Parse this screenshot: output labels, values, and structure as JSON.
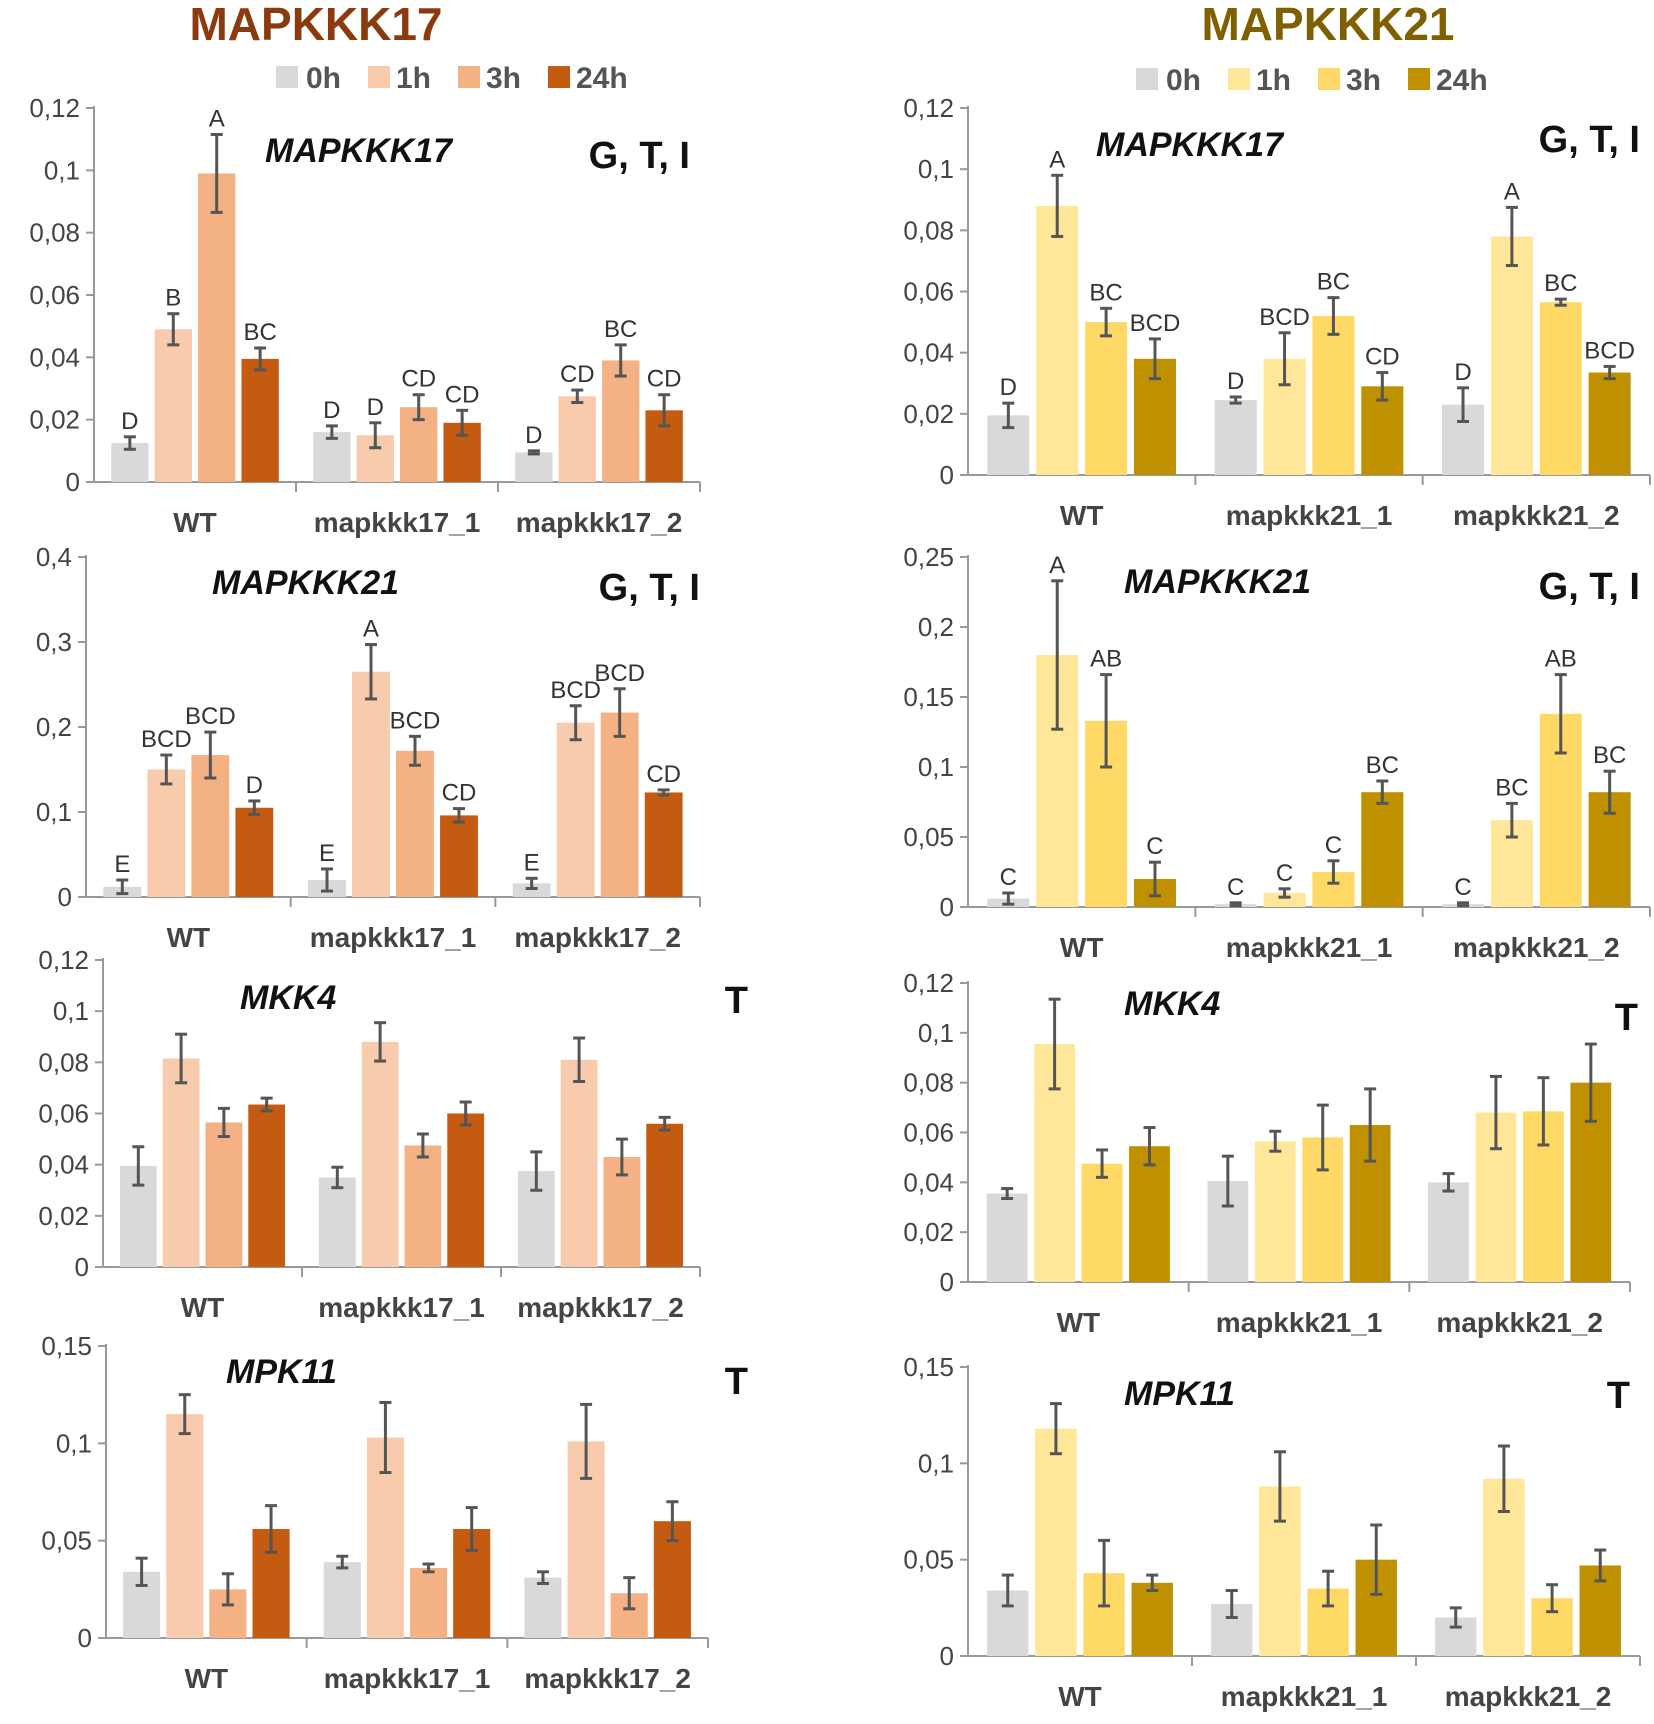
{
  "columns": [
    {
      "title": "MAPKKK17",
      "title_color": "#8B3A0E",
      "legend": [
        "0h",
        "1h",
        "3h",
        "24h"
      ],
      "colors": [
        "#D9D9D9",
        "#F8CBAD",
        "#F4B183",
        "#C55A11"
      ]
    },
    {
      "title": "MAPKKK21",
      "title_color": "#7F6000",
      "legend": [
        "0h",
        "1h",
        "3h",
        "24h"
      ],
      "colors": [
        "#D9D9D9",
        "#FFE699",
        "#FFD966",
        "#BF9000"
      ]
    }
  ],
  "chart_data": [
    {
      "type": "bar",
      "column": 0,
      "row": 0,
      "title": "MAPKKK17",
      "code": "G, T, I",
      "categories": [
        "WT",
        "mapkkk17_1",
        "mapkkk17_2"
      ],
      "ylim": [
        0,
        0.12
      ],
      "yticks": [
        "0",
        "0,02",
        "0,04",
        "0,06",
        "0,08",
        "0,1",
        "0,12"
      ],
      "ystep": 0.02,
      "series": [
        {
          "name": "0h",
          "values": [
            0.0125,
            0.016,
            0.0095
          ],
          "errors": [
            0.002,
            0.002,
            0.0005
          ],
          "letters": [
            "D",
            "D",
            "D"
          ]
        },
        {
          "name": "1h",
          "values": [
            0.049,
            0.015,
            0.0275
          ],
          "errors": [
            0.005,
            0.004,
            0.002
          ],
          "letters": [
            "B",
            "D",
            "CD"
          ]
        },
        {
          "name": "3h",
          "values": [
            0.099,
            0.024,
            0.039
          ],
          "errors": [
            0.0125,
            0.004,
            0.005
          ],
          "letters": [
            "A",
            "CD",
            "BC"
          ]
        },
        {
          "name": "24h",
          "values": [
            0.0395,
            0.019,
            0.023
          ],
          "errors": [
            0.0035,
            0.004,
            0.005
          ],
          "letters": [
            "BC",
            "CD",
            "CD"
          ]
        }
      ]
    },
    {
      "type": "bar",
      "column": 0,
      "row": 1,
      "title": "MAPKKK21",
      "code": "G, T, I",
      "categories": [
        "WT",
        "mapkkk17_1",
        "mapkkk17_2"
      ],
      "ylim": [
        0,
        0.4
      ],
      "yticks": [
        "0",
        "0,1",
        "0,2",
        "0,3",
        "0,4"
      ],
      "ystep": 0.1,
      "series": [
        {
          "name": "0h",
          "values": [
            0.012,
            0.02,
            0.016
          ],
          "errors": [
            0.008,
            0.013,
            0.006
          ],
          "letters": [
            "E",
            "E",
            "E"
          ]
        },
        {
          "name": "1h",
          "values": [
            0.15,
            0.265,
            0.205
          ],
          "errors": [
            0.017,
            0.032,
            0.02
          ],
          "letters": [
            "BCD",
            "A",
            "BCD"
          ]
        },
        {
          "name": "3h",
          "values": [
            0.167,
            0.172,
            0.217
          ],
          "errors": [
            0.027,
            0.017,
            0.028
          ],
          "letters": [
            "BCD",
            "BCD",
            "BCD"
          ]
        },
        {
          "name": "24h",
          "values": [
            0.105,
            0.096,
            0.123
          ],
          "errors": [
            0.008,
            0.008,
            0.003
          ],
          "letters": [
            "D",
            "CD",
            "CD"
          ]
        }
      ]
    },
    {
      "type": "bar",
      "column": 0,
      "row": 2,
      "title": "MKK4",
      "code": "T",
      "categories": [
        "WT",
        "mapkkk17_1",
        "mapkkk17_2"
      ],
      "ylim": [
        0,
        0.12
      ],
      "yticks": [
        "0",
        "0,02",
        "0,04",
        "0,06",
        "0,08",
        "0,1",
        "0,12"
      ],
      "ystep": 0.02,
      "series": [
        {
          "name": "0h",
          "values": [
            0.0395,
            0.035,
            0.0375
          ],
          "errors": [
            0.0075,
            0.004,
            0.0075
          ],
          "letters": [
            "",
            "",
            ""
          ]
        },
        {
          "name": "1h",
          "values": [
            0.0815,
            0.088,
            0.081
          ],
          "errors": [
            0.0095,
            0.0075,
            0.0085
          ],
          "letters": [
            "",
            "",
            ""
          ]
        },
        {
          "name": "3h",
          "values": [
            0.0565,
            0.0475,
            0.043
          ],
          "errors": [
            0.0055,
            0.0045,
            0.007
          ],
          "letters": [
            "",
            "",
            ""
          ]
        },
        {
          "name": "24h",
          "values": [
            0.0635,
            0.06,
            0.056
          ],
          "errors": [
            0.0025,
            0.0045,
            0.0025
          ],
          "letters": [
            "",
            "",
            ""
          ]
        }
      ]
    },
    {
      "type": "bar",
      "column": 0,
      "row": 3,
      "title": "MPK11",
      "code": "T",
      "categories": [
        "WT",
        "mapkkk17_1",
        "mapkkk17_2"
      ],
      "ylim": [
        0,
        0.15
      ],
      "yticks": [
        "0",
        "0,05",
        "0,1",
        "0,15"
      ],
      "ystep": 0.05,
      "series": [
        {
          "name": "0h",
          "values": [
            0.034,
            0.039,
            0.031
          ],
          "errors": [
            0.007,
            0.003,
            0.003
          ],
          "letters": [
            "",
            "",
            ""
          ]
        },
        {
          "name": "1h",
          "values": [
            0.115,
            0.103,
            0.101
          ],
          "errors": [
            0.01,
            0.018,
            0.019
          ],
          "letters": [
            "",
            "",
            ""
          ]
        },
        {
          "name": "3h",
          "values": [
            0.025,
            0.036,
            0.023
          ],
          "errors": [
            0.008,
            0.002,
            0.008
          ],
          "letters": [
            "",
            "",
            ""
          ]
        },
        {
          "name": "24h",
          "values": [
            0.056,
            0.056,
            0.06
          ],
          "errors": [
            0.012,
            0.011,
            0.01
          ],
          "letters": [
            "",
            "",
            ""
          ]
        }
      ]
    },
    {
      "type": "bar",
      "column": 1,
      "row": 0,
      "title": "MAPKKK17",
      "code": "G, T, I",
      "categories": [
        "WT",
        "mapkkk21_1",
        "mapkkk21_2"
      ],
      "ylim": [
        0,
        0.12
      ],
      "yticks": [
        "0",
        "0,02",
        "0,04",
        "0,06",
        "0,08",
        "0,1",
        "0,12"
      ],
      "ystep": 0.02,
      "series": [
        {
          "name": "0h",
          "values": [
            0.0195,
            0.0245,
            0.023
          ],
          "errors": [
            0.004,
            0.001,
            0.0055
          ],
          "letters": [
            "D",
            "D",
            "D"
          ]
        },
        {
          "name": "1h",
          "values": [
            0.088,
            0.038,
            0.078
          ],
          "errors": [
            0.01,
            0.0085,
            0.0095
          ],
          "letters": [
            "A",
            "BCD",
            "A"
          ]
        },
        {
          "name": "3h",
          "values": [
            0.05,
            0.052,
            0.0565
          ],
          "errors": [
            0.0045,
            0.006,
            0.001
          ],
          "letters": [
            "BC",
            "BC",
            "BC"
          ]
        },
        {
          "name": "24h",
          "values": [
            0.038,
            0.029,
            0.0335
          ],
          "errors": [
            0.0065,
            0.0045,
            0.002
          ],
          "letters": [
            "BCD",
            "CD",
            "BCD"
          ]
        }
      ]
    },
    {
      "type": "bar",
      "column": 1,
      "row": 1,
      "title": "MAPKKK21",
      "code": "G, T, I",
      "categories": [
        "WT",
        "mapkkk21_1",
        "mapkkk21_2"
      ],
      "ylim": [
        0,
        0.25
      ],
      "yticks": [
        "0",
        "0,05",
        "0,1",
        "0,15",
        "0,2",
        "0,25"
      ],
      "ystep": 0.05,
      "series": [
        {
          "name": "0h",
          "values": [
            0.006,
            0.002,
            0.002
          ],
          "errors": [
            0.004,
            0.001,
            0.001
          ],
          "letters": [
            "C",
            "C",
            "C"
          ]
        },
        {
          "name": "1h",
          "values": [
            0.18,
            0.01,
            0.062
          ],
          "errors": [
            0.053,
            0.003,
            0.012
          ],
          "letters": [
            "A",
            "C",
            "BC"
          ]
        },
        {
          "name": "3h",
          "values": [
            0.133,
            0.025,
            0.138
          ],
          "errors": [
            0.033,
            0.008,
            0.028
          ],
          "letters": [
            "AB",
            "C",
            "AB"
          ]
        },
        {
          "name": "24h",
          "values": [
            0.02,
            0.082,
            0.082
          ],
          "errors": [
            0.012,
            0.008,
            0.015
          ],
          "letters": [
            "C",
            "BC",
            "BC"
          ]
        }
      ]
    },
    {
      "type": "bar",
      "column": 1,
      "row": 2,
      "title": "MKK4",
      "code": "T",
      "categories": [
        "WT",
        "mapkkk21_1",
        "mapkkk21_2"
      ],
      "ylim": [
        0,
        0.12
      ],
      "yticks": [
        "0",
        "0,02",
        "0,04",
        "0,06",
        "0,08",
        "0,1",
        "0,12"
      ],
      "ystep": 0.02,
      "series": [
        {
          "name": "0h",
          "values": [
            0.0355,
            0.0405,
            0.04
          ],
          "errors": [
            0.002,
            0.01,
            0.0035
          ],
          "letters": [
            "",
            "",
            ""
          ]
        },
        {
          "name": "1h",
          "values": [
            0.0955,
            0.0565,
            0.068
          ],
          "errors": [
            0.018,
            0.004,
            0.0145
          ],
          "letters": [
            "",
            "",
            ""
          ]
        },
        {
          "name": "3h",
          "values": [
            0.0475,
            0.058,
            0.0685
          ],
          "errors": [
            0.0055,
            0.013,
            0.0135
          ],
          "letters": [
            "",
            "",
            ""
          ]
        },
        {
          "name": "24h",
          "values": [
            0.0545,
            0.063,
            0.08
          ],
          "errors": [
            0.0075,
            0.0145,
            0.0155
          ],
          "letters": [
            "",
            "",
            ""
          ]
        }
      ]
    },
    {
      "type": "bar",
      "column": 1,
      "row": 3,
      "title": "MPK11",
      "code": "T",
      "categories": [
        "WT",
        "mapkkk21_1",
        "mapkkk21_2"
      ],
      "ylim": [
        0,
        0.15
      ],
      "yticks": [
        "0",
        "0,05",
        "0,1",
        "0,15"
      ],
      "ystep": 0.05,
      "series": [
        {
          "name": "0h",
          "values": [
            0.034,
            0.027,
            0.02
          ],
          "errors": [
            0.008,
            0.007,
            0.005
          ],
          "letters": [
            "",
            "",
            ""
          ]
        },
        {
          "name": "1h",
          "values": [
            0.118,
            0.088,
            0.092
          ],
          "errors": [
            0.013,
            0.018,
            0.017
          ],
          "letters": [
            "",
            "",
            ""
          ]
        },
        {
          "name": "3h",
          "values": [
            0.043,
            0.035,
            0.03
          ],
          "errors": [
            0.017,
            0.009,
            0.007
          ],
          "letters": [
            "",
            "",
            ""
          ]
        },
        {
          "name": "24h",
          "values": [
            0.038,
            0.05,
            0.047
          ],
          "errors": [
            0.004,
            0.018,
            0.008
          ],
          "letters": [
            "",
            "",
            ""
          ]
        }
      ]
    }
  ]
}
